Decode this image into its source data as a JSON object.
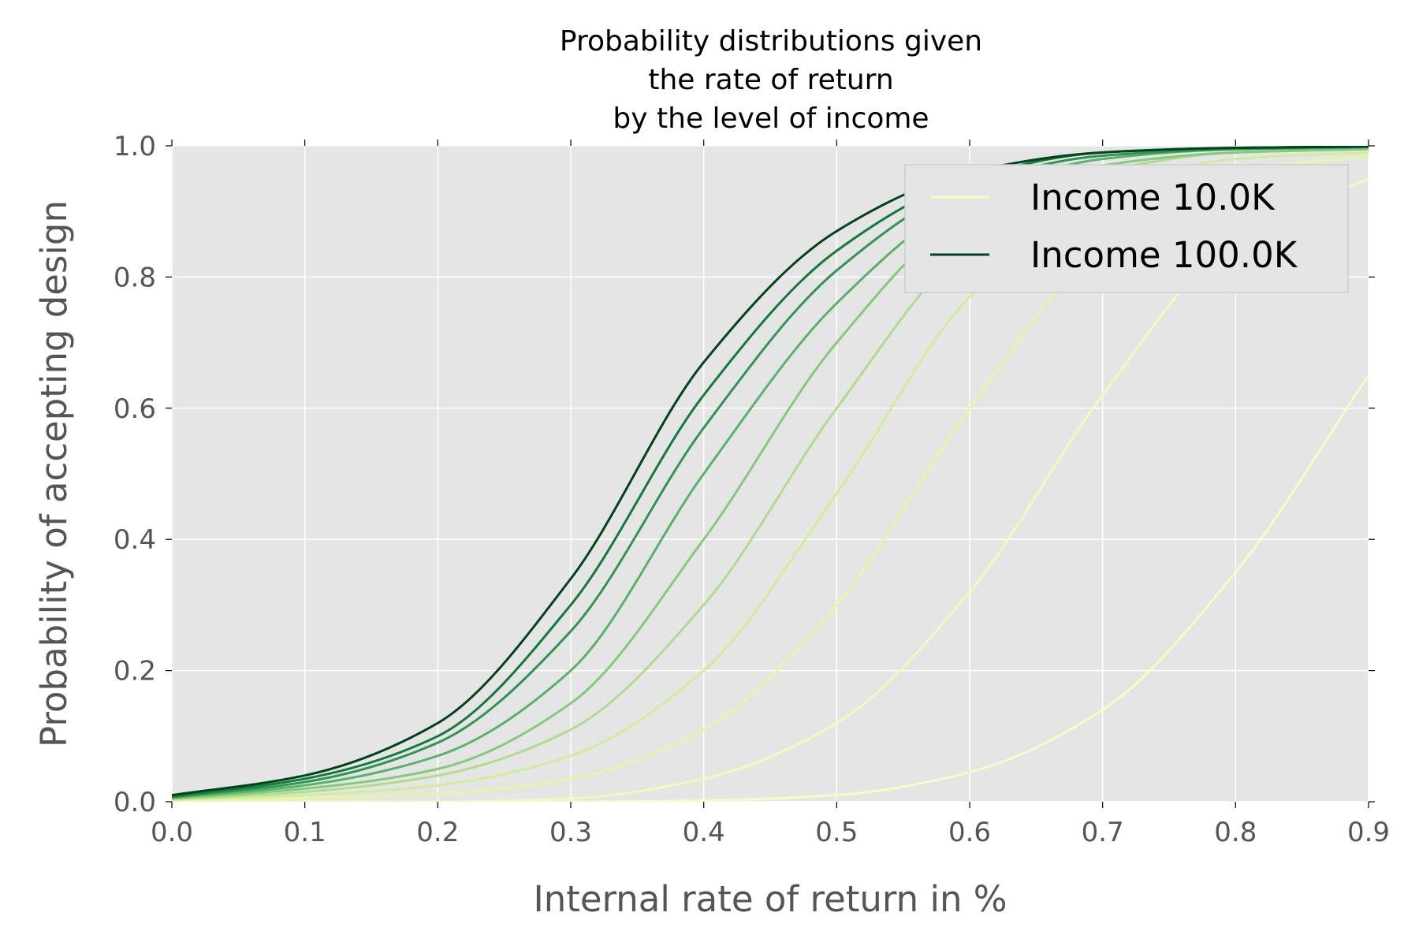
{
  "chart_data": {
    "type": "line",
    "title_lines": [
      "Probability distributions given",
      "the rate of return",
      "by the level of income"
    ],
    "xlabel": "Internal rate of return in %",
    "ylabel": "Probability of accepting design",
    "xlim": [
      0.0,
      0.9
    ],
    "ylim": [
      0.0,
      1.0
    ],
    "x_ticks": [
      "0.0",
      "0.1",
      "0.2",
      "0.3",
      "0.4",
      "0.5",
      "0.6",
      "0.7",
      "0.8",
      "0.9"
    ],
    "y_ticks": [
      "0.0",
      "0.2",
      "0.4",
      "0.6",
      "0.8",
      "1.0"
    ],
    "grid": true,
    "legend": {
      "position": "top-right",
      "entries": [
        {
          "label": "Income 10.0K",
          "color": "#f7fcc4"
        },
        {
          "label": "Income 100.0K",
          "color": "#00441b"
        }
      ]
    },
    "x": [
      0.0,
      0.1,
      0.2,
      0.3,
      0.4,
      0.5,
      0.6,
      0.7,
      0.8,
      0.9
    ],
    "series": [
      {
        "color": "#f7fcc4",
        "values": [
          0.0,
          0.0,
          0.0,
          0.0,
          0.002,
          0.01,
          0.045,
          0.14,
          0.35,
          0.65
        ]
      },
      {
        "color": "#f2fabb",
        "values": [
          0.0,
          0.0,
          0.0,
          0.005,
          0.035,
          0.12,
          0.32,
          0.62,
          0.86,
          0.95
        ]
      },
      {
        "color": "#e7f5a6",
        "values": [
          0.002,
          0.005,
          0.012,
          0.035,
          0.11,
          0.3,
          0.6,
          0.85,
          0.96,
          0.985
        ]
      },
      {
        "color": "#d2ec97",
        "values": [
          0.003,
          0.01,
          0.025,
          0.07,
          0.2,
          0.47,
          0.77,
          0.93,
          0.98,
          0.99
        ]
      },
      {
        "color": "#b0dd8c",
        "values": [
          0.004,
          0.015,
          0.04,
          0.11,
          0.3,
          0.6,
          0.85,
          0.96,
          0.99,
          0.995
        ]
      },
      {
        "color": "#85c97c",
        "values": [
          0.005,
          0.02,
          0.05,
          0.15,
          0.4,
          0.7,
          0.9,
          0.97,
          0.99,
          0.995
        ]
      },
      {
        "color": "#57b26a",
        "values": [
          0.006,
          0.025,
          0.07,
          0.2,
          0.5,
          0.76,
          0.92,
          0.98,
          0.995,
          0.998
        ]
      },
      {
        "color": "#2f9550",
        "values": [
          0.007,
          0.03,
          0.09,
          0.26,
          0.57,
          0.81,
          0.94,
          0.985,
          0.995,
          0.998
        ]
      },
      {
        "color": "#137a3b",
        "values": [
          0.008,
          0.035,
          0.1,
          0.3,
          0.62,
          0.84,
          0.95,
          0.99,
          0.997,
          0.999
        ]
      },
      {
        "color": "#00441b",
        "values": [
          0.01,
          0.04,
          0.12,
          0.34,
          0.67,
          0.87,
          0.96,
          0.99,
          0.997,
          0.999
        ]
      }
    ]
  }
}
